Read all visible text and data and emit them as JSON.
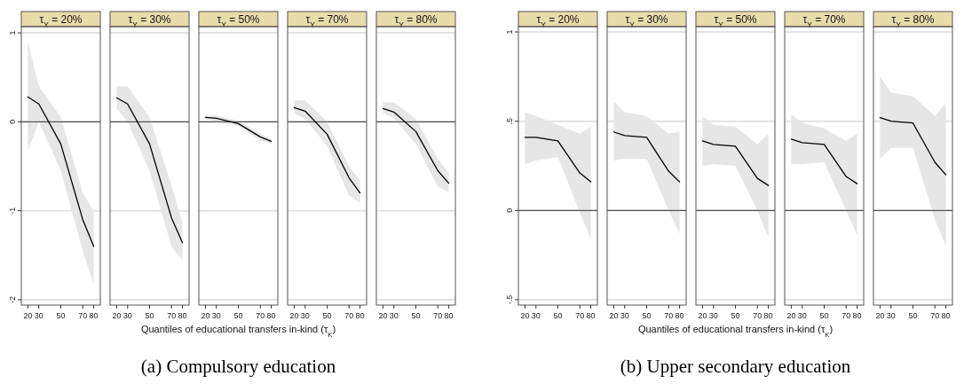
{
  "chart_data": [
    {
      "type": "line",
      "title": "τ$_{Y}$ = 20%",
      "x": [
        20,
        30,
        50,
        70,
        80
      ],
      "xlim": [
        14,
        86
      ],
      "xticks": [
        20,
        30,
        50,
        70,
        80
      ],
      "ylim": [
        -2.06,
        1.07
      ],
      "yticks": [
        1,
        0,
        -1,
        -2
      ],
      "grid": "y",
      "ref_lines": [
        {
          "axis": "y",
          "value": 0
        }
      ],
      "series": [
        {
          "color": "#000000",
          "values": [
            0.28,
            0.2,
            -0.25,
            -1.1,
            -1.4
          ],
          "lower": [
            -0.33,
            0.0,
            -0.55,
            -1.45,
            -1.83
          ],
          "upper": [
            0.9,
            0.4,
            0.05,
            -0.8,
            -1.0
          ]
        }
      ]
    },
    {
      "type": "line",
      "title": "τ$_{Y}$ = 30%",
      "x": [
        20,
        30,
        50,
        70,
        80
      ],
      "xlim": [
        14,
        86
      ],
      "xticks": [
        20,
        30,
        50,
        70,
        80
      ],
      "ylim": [
        -2.06,
        1.07
      ],
      "yticks": [
        1,
        0,
        -1,
        -2
      ],
      "grid": "y",
      "tick_labels": "x",
      "ref_lines": [
        {
          "axis": "y",
          "value": 0
        }
      ],
      "series": [
        {
          "color": "#000000",
          "values": [
            0.27,
            0.2,
            -0.25,
            -1.08,
            -1.36
          ],
          "lower": [
            0.15,
            0.0,
            -0.55,
            -1.4,
            -1.56
          ],
          "upper": [
            0.4,
            0.4,
            0.05,
            -0.72,
            -1.13
          ]
        }
      ]
    },
    {
      "type": "line",
      "title": "τ$_{Y}$ = 50%",
      "x": [
        20,
        30,
        50,
        70,
        80
      ],
      "xlim": [
        14,
        86
      ],
      "xticks": [
        20,
        30,
        50,
        70,
        80
      ],
      "ylim": [
        -2.06,
        1.07
      ],
      "yticks": [
        1,
        0,
        -1,
        -2
      ],
      "grid": "y",
      "tick_labels": "x",
      "ref_lines": [
        {
          "axis": "y",
          "value": 0
        }
      ],
      "xlabel": "Quantiles of educational transfers in-kind (τ$_{K}$)",
      "annotations": [
        "(a)  Compulsory education"
      ],
      "series": [
        {
          "color": "#000000",
          "values": [
            0.05,
            0.04,
            -0.02,
            -0.17,
            -0.22
          ],
          "lower": [
            0.03,
            0.01,
            -0.05,
            -0.21,
            -0.25
          ],
          "upper": [
            0.07,
            0.07,
            0.01,
            -0.13,
            -0.19
          ]
        }
      ]
    },
    {
      "type": "line",
      "title": "τ$_{Y}$ = 70%",
      "x": [
        20,
        30,
        50,
        70,
        80
      ],
      "xlim": [
        14,
        86
      ],
      "xticks": [
        20,
        30,
        50,
        70,
        80
      ],
      "ylim": [
        -2.06,
        1.07
      ],
      "yticks": [
        1,
        0,
        -1,
        -2
      ],
      "grid": "y",
      "tick_labels": "x",
      "ref_lines": [
        {
          "axis": "y",
          "value": 0
        }
      ],
      "series": [
        {
          "color": "#000000",
          "values": [
            0.16,
            0.12,
            -0.14,
            -0.63,
            -0.8
          ],
          "lower": [
            0.1,
            0.03,
            -0.27,
            -0.83,
            -0.91
          ],
          "upper": [
            0.24,
            0.24,
            0.0,
            -0.5,
            -0.66
          ]
        }
      ]
    },
    {
      "type": "line",
      "title": "τ$_{Y}$ = 80%",
      "x": [
        20,
        30,
        50,
        70,
        80
      ],
      "xlim": [
        14,
        86
      ],
      "xticks": [
        20,
        30,
        50,
        70,
        80
      ],
      "ylim": [
        -2.06,
        1.07
      ],
      "yticks": [
        1,
        0,
        -1,
        -2
      ],
      "grid": "y",
      "tick_labels": "x",
      "ref_lines": [
        {
          "axis": "y",
          "value": 0
        }
      ],
      "series": [
        {
          "color": "#000000",
          "values": [
            0.15,
            0.11,
            -0.11,
            -0.55,
            -0.69
          ],
          "lower": [
            0.1,
            0.04,
            -0.25,
            -0.73,
            -0.79
          ],
          "upper": [
            0.22,
            0.22,
            0.03,
            -0.42,
            -0.57
          ]
        }
      ]
    },
    {
      "type": "line",
      "title": "τ$_{Y}$ = 20%",
      "x": [
        20,
        30,
        50,
        70,
        80
      ],
      "xlim": [
        14,
        86
      ],
      "xticks": [
        20,
        30,
        50,
        70,
        80
      ],
      "ylim": [
        -0.53,
        1.03
      ],
      "yticks": [
        1,
        {
          "value": 0.5,
          "label": ".5"
        },
        0,
        {
          "value": -0.5,
          "label": "-.5"
        }
      ],
      "grid": "y",
      "ref_lines": [
        {
          "axis": "y",
          "value": 0
        }
      ],
      "series": [
        {
          "color": "#000000",
          "values": [
            0.41,
            0.41,
            0.39,
            0.21,
            0.16
          ],
          "lower": [
            0.26,
            0.28,
            0.3,
            -0.01,
            -0.16
          ],
          "upper": [
            0.55,
            0.53,
            0.48,
            0.43,
            0.47
          ]
        }
      ]
    },
    {
      "type": "line",
      "title": "τ$_{Y}$ = 30%",
      "x": [
        20,
        30,
        50,
        70,
        80
      ],
      "xlim": [
        14,
        86
      ],
      "xticks": [
        20,
        30,
        50,
        70,
        80
      ],
      "ylim": [
        -0.53,
        1.03
      ],
      "yticks": [
        1,
        0.5,
        0,
        -0.5
      ],
      "grid": "y",
      "tick_labels": "x",
      "ref_lines": [
        {
          "axis": "y",
          "value": 0
        }
      ],
      "series": [
        {
          "color": "#000000",
          "values": [
            0.44,
            0.42,
            0.41,
            0.22,
            0.16
          ],
          "lower": [
            0.28,
            0.29,
            0.29,
            0.0,
            -0.13
          ],
          "upper": [
            0.61,
            0.55,
            0.53,
            0.43,
            0.44
          ]
        }
      ]
    },
    {
      "type": "line",
      "title": "τ$_{Y}$ = 50%",
      "x": [
        20,
        30,
        50,
        70,
        80
      ],
      "xlim": [
        14,
        86
      ],
      "xticks": [
        20,
        30,
        50,
        70,
        80
      ],
      "ylim": [
        -0.53,
        1.03
      ],
      "yticks": [
        1,
        0.5,
        0,
        -0.5
      ],
      "grid": "y",
      "tick_labels": "x",
      "ref_lines": [
        {
          "axis": "y",
          "value": 0
        }
      ],
      "xlabel": "Quantiles of educational transfers in-kind (τ$_{K}$)",
      "annotations": [
        "(b)  Upper secondary education"
      ],
      "series": [
        {
          "color": "#000000",
          "values": [
            0.39,
            0.37,
            0.36,
            0.18,
            0.14
          ],
          "lower": [
            0.25,
            0.26,
            0.25,
            0.0,
            -0.15
          ],
          "upper": [
            0.53,
            0.48,
            0.47,
            0.37,
            0.43
          ]
        }
      ]
    },
    {
      "type": "line",
      "title": "τ$_{Y}$ = 70%",
      "x": [
        20,
        30,
        50,
        70,
        80
      ],
      "xlim": [
        14,
        86
      ],
      "xticks": [
        20,
        30,
        50,
        70,
        80
      ],
      "ylim": [
        -0.53,
        1.03
      ],
      "yticks": [
        1,
        0.5,
        0,
        -0.5
      ],
      "grid": "y",
      "tick_labels": "x",
      "ref_lines": [
        {
          "axis": "y",
          "value": 0
        }
      ],
      "series": [
        {
          "color": "#000000",
          "values": [
            0.4,
            0.38,
            0.37,
            0.19,
            0.15
          ],
          "lower": [
            0.26,
            0.26,
            0.27,
            0.0,
            -0.14
          ],
          "upper": [
            0.54,
            0.49,
            0.46,
            0.39,
            0.43
          ]
        }
      ]
    },
    {
      "type": "line",
      "title": "τ$_{Y}$ = 80%",
      "x": [
        20,
        30,
        50,
        70,
        80
      ],
      "xlim": [
        14,
        86
      ],
      "xticks": [
        20,
        30,
        50,
        70,
        80
      ],
      "ylim": [
        -0.53,
        1.03
      ],
      "yticks": [
        1,
        0.5,
        0,
        -0.5
      ],
      "grid": "y",
      "tick_labels": "x",
      "ref_lines": [
        {
          "axis": "y",
          "value": 0
        }
      ],
      "series": [
        {
          "color": "#000000",
          "values": [
            0.52,
            0.5,
            0.49,
            0.27,
            0.2
          ],
          "lower": [
            0.29,
            0.35,
            0.35,
            -0.05,
            -0.2
          ],
          "upper": [
            0.75,
            0.66,
            0.64,
            0.53,
            0.6
          ]
        }
      ]
    }
  ]
}
